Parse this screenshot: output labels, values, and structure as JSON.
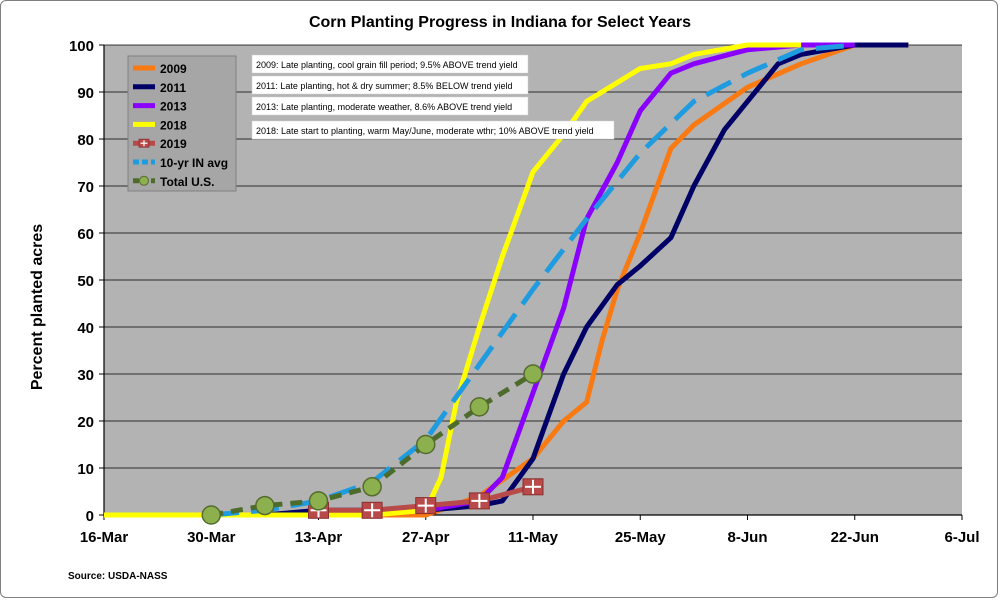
{
  "chart_data": {
    "type": "line",
    "title": "Corn Planting Progress in Indiana for Select Years",
    "ylabel": "Percent planted acres",
    "xlabel": "",
    "ylim": [
      0,
      100
    ],
    "yticks": [
      0,
      10,
      20,
      30,
      40,
      50,
      60,
      70,
      80,
      90,
      100
    ],
    "x_ticks": [
      {
        "day": 0,
        "label": "16-Mar"
      },
      {
        "day": 14,
        "label": "30-Mar"
      },
      {
        "day": 28,
        "label": "13-Apr"
      },
      {
        "day": 42,
        "label": "27-Apr"
      },
      {
        "day": 56,
        "label": "11-May"
      },
      {
        "day": 70,
        "label": "25-May"
      },
      {
        "day": 84,
        "label": "8-Jun"
      },
      {
        "day": 98,
        "label": "22-Jun"
      },
      {
        "day": 112,
        "label": "6-Jul"
      }
    ],
    "plot_background": "#b3b3b3",
    "grid": "horizontal",
    "legend_position": "top-left",
    "series": [
      {
        "name": "2009",
        "color": "#f97a12",
        "style": "solid",
        "marker": "none",
        "x": [
          0,
          14,
          21,
          28,
          35,
          42,
          49,
          56,
          60,
          63,
          65,
          67,
          70,
          74,
          77,
          84,
          91,
          98,
          105
        ],
        "y": [
          0,
          0,
          0,
          0,
          0,
          0,
          4,
          12,
          20,
          24,
          37,
          48,
          60,
          78,
          83,
          91,
          96,
          100,
          100
        ]
      },
      {
        "name": "2011",
        "color": "#000066",
        "style": "solid",
        "marker": "none",
        "x": [
          0,
          14,
          21,
          28,
          35,
          42,
          49,
          52,
          56,
          60,
          63,
          67,
          70,
          74,
          77,
          81,
          84,
          88,
          91,
          98,
          105
        ],
        "y": [
          0,
          0,
          0,
          1,
          1,
          1,
          2,
          3,
          12,
          30,
          40,
          49,
          53,
          59,
          70,
          82,
          88,
          96,
          98,
          100,
          100
        ]
      },
      {
        "name": "2013",
        "color": "#8a00ff",
        "style": "solid",
        "marker": "none",
        "x": [
          0,
          14,
          21,
          28,
          35,
          42,
          49,
          52,
          56,
          60,
          63,
          67,
          70,
          74,
          77,
          84,
          91,
          98
        ],
        "y": [
          0,
          0,
          0,
          0,
          1,
          1,
          3,
          8,
          26,
          44,
          63,
          75,
          86,
          94,
          96,
          99,
          100,
          100
        ]
      },
      {
        "name": "2018",
        "color": "#ffff00",
        "style": "solid",
        "marker": "none",
        "x": [
          0,
          14,
          21,
          28,
          35,
          42,
          44,
          46,
          49,
          52,
          56,
          60,
          63,
          67,
          70,
          74,
          77,
          84,
          91
        ],
        "y": [
          0,
          0,
          0,
          0,
          0,
          1,
          8,
          24,
          40,
          55,
          73,
          81,
          88,
          92,
          95,
          96,
          98,
          100,
          100
        ]
      },
      {
        "name": "2019",
        "color": "#b84a4a",
        "style": "solid",
        "marker": "plus-square",
        "x": [
          28,
          35,
          42,
          49,
          56
        ],
        "y": [
          1,
          1,
          2,
          3,
          6
        ]
      },
      {
        "name": "10-yr IN avg",
        "color": "#1f9be0",
        "style": "dashed",
        "marker": "none",
        "x": [
          14,
          21,
          28,
          35,
          42,
          49,
          56,
          63,
          70,
          77,
          84,
          91,
          98
        ],
        "y": [
          0,
          1,
          3,
          7,
          16,
          32,
          48,
          63,
          77,
          88,
          94,
          99,
          100
        ]
      },
      {
        "name": "Total U.S.",
        "color": "#4d6b2a",
        "style": "dashed",
        "marker": "circle",
        "x": [
          14,
          21,
          28,
          35,
          42,
          49,
          56
        ],
        "y": [
          0,
          2,
          3,
          6,
          15,
          23,
          30
        ]
      }
    ],
    "annotations": [
      "2009: Late planting, cool grain fill period; 9.5% ABOVE trend yield",
      "2011: Late planting, hot & dry summer; 8.5% BELOW trend yield",
      "2013: Late planting, moderate weather, 8.6% ABOVE trend yield",
      "2018: Late start to planting, warm May/June, moderate  wthr; 10% ABOVE trend yield"
    ],
    "source": "Source: USDA-NASS"
  }
}
